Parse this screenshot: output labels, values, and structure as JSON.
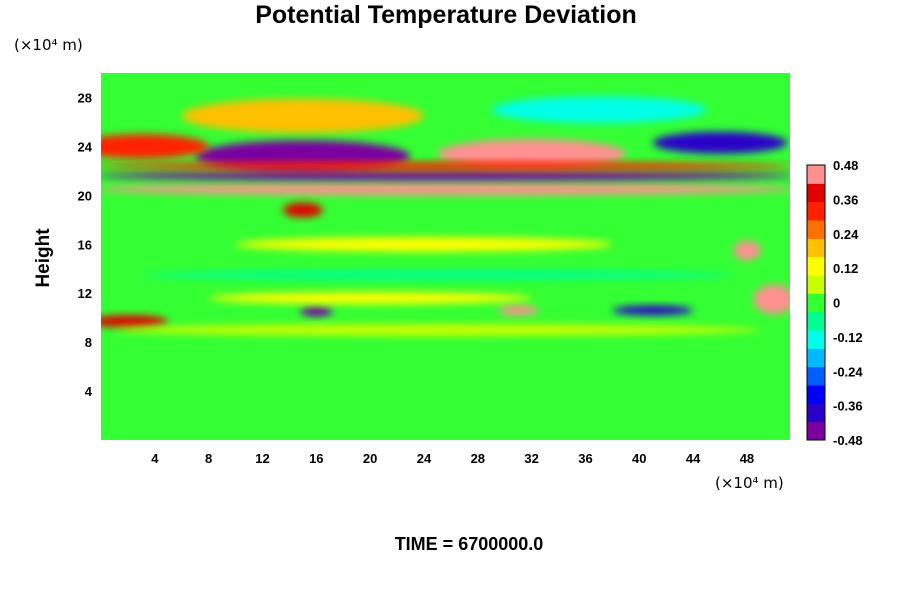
{
  "chart_data": {
    "type": "heatmap",
    "title": "Potential Temperature Deviation",
    "xlabel": "",
    "ylabel": "Height",
    "x_unit_label": "(×10⁴ m)",
    "y_unit_label": "(×10⁴ m)",
    "footer": "TIME = 6700000.0",
    "xlim": [
      0,
      51.2
    ],
    "ylim": [
      0,
      30
    ],
    "x_ticks": [
      "4",
      "8",
      "12",
      "16",
      "20",
      "24",
      "28",
      "32",
      "36",
      "40",
      "44",
      "48"
    ],
    "y_ticks": [
      "4",
      "8",
      "12",
      "16",
      "20",
      "24",
      "28"
    ],
    "colorbar": {
      "min": -0.48,
      "max": 0.48,
      "tick_labels": [
        "0.48",
        "0.36",
        "0.24",
        "0.12",
        "0",
        "-0.12",
        "-0.24",
        "-0.36",
        "-0.48"
      ],
      "colors": [
        "#7a00a0",
        "#2a00c8",
        "#0000ff",
        "#0060ff",
        "#00b8ff",
        "#00ffe8",
        "#00ff90",
        "#33ff33",
        "#c8ff00",
        "#ffff00",
        "#ffc000",
        "#ff7000",
        "#ff2000",
        "#e00000",
        "#ff9090"
      ]
    },
    "features": [
      {
        "x": 15,
        "y": 26.5,
        "rx": 9,
        "ry": 1.4,
        "value": 0.2
      },
      {
        "x": 37,
        "y": 27.0,
        "rx": 8,
        "ry": 1.1,
        "value": -0.12
      },
      {
        "x": 15,
        "y": 23.2,
        "rx": 8,
        "ry": 1.3,
        "value": -0.42
      },
      {
        "x": 32,
        "y": 23.4,
        "rx": 7,
        "ry": 1.2,
        "value": 0.46
      },
      {
        "x": 46,
        "y": 24.3,
        "rx": 5,
        "ry": 0.9,
        "value": -0.4
      },
      {
        "x": 3,
        "y": 24.0,
        "rx": 5,
        "ry": 1.0,
        "value": 0.3
      },
      {
        "x": 25.6,
        "y": 20.5,
        "rx": 26,
        "ry": 0.5,
        "value": 0.48
      },
      {
        "x": 25.6,
        "y": 21.6,
        "rx": 26,
        "ry": 0.4,
        "value": -0.44
      },
      {
        "x": 25.6,
        "y": 22.4,
        "rx": 26,
        "ry": 0.35,
        "value": 0.3
      },
      {
        "x": 15,
        "y": 18.8,
        "rx": 1.5,
        "ry": 0.6,
        "value": 0.4
      },
      {
        "x": 48,
        "y": 15.5,
        "rx": 1.0,
        "ry": 0.8,
        "value": 0.44
      },
      {
        "x": 16,
        "y": 10.5,
        "rx": 1.2,
        "ry": 0.4,
        "value": -0.44
      },
      {
        "x": 41,
        "y": 10.6,
        "rx": 3,
        "ry": 0.4,
        "value": -0.4
      },
      {
        "x": 31,
        "y": 10.6,
        "rx": 1.5,
        "ry": 0.4,
        "value": 0.42
      },
      {
        "x": 2,
        "y": 9.7,
        "rx": 3,
        "ry": 0.5,
        "value": 0.4
      },
      {
        "x": 50,
        "y": 11.5,
        "rx": 1.5,
        "ry": 1.2,
        "value": 0.44
      },
      {
        "x": 20,
        "y": 11.6,
        "rx": 12,
        "ry": 0.5,
        "value": 0.14
      },
      {
        "x": 24,
        "y": 16.0,
        "rx": 14,
        "ry": 0.6,
        "value": 0.12
      },
      {
        "x": 25,
        "y": 13.5,
        "rx": 22,
        "ry": 0.4,
        "value": -0.05
      },
      {
        "x": 25,
        "y": 9.0,
        "rx": 24,
        "ry": 0.5,
        "value": 0.08
      }
    ]
  }
}
